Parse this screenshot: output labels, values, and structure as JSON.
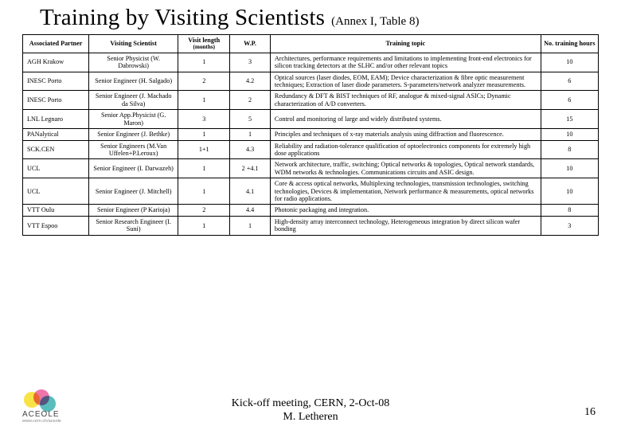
{
  "title": "Training by Visiting Scientists",
  "annex": "(Annex I, Table 8)",
  "headers": {
    "c0": "Associated Partner",
    "c1": "Visiting Scientist",
    "c2_main": "Visit length",
    "c2_sub": "(months)",
    "c3": "W.P.",
    "c4": "Training topic",
    "c5": "No. training hours"
  },
  "rows": [
    {
      "c0": "AGH Krakow",
      "c1": "Senior Physicist (W. Dabrowski)",
      "c2": "1",
      "c3": "3",
      "c4": "Architectures, performance requirements and limitations to implementing front-end electronics for silicon tracking detectors at the SLHC and/or other relevant topics",
      "c5": "10"
    },
    {
      "c0": "INESC Porto",
      "c1": "Senior Engineer (H. Salgado)",
      "c2": "2",
      "c3": "4.2",
      "c4": "Optical sources (laser diodes, EOM, EAM); Device characterization & fibre optic measurement techniques; Extraction of laser diode parameters. S-parameters/network analyzer measurements.",
      "c5": "6"
    },
    {
      "c0": "INESC Porto",
      "c1": "Senior Engineer (J. Machado da Silva)",
      "c2": "1",
      "c3": "2",
      "c4": "Redundancy & DFT & BIST techniques of RF, analogue & mixed-signal ASICs; Dynamic characterization of A/D converters.",
      "c5": "6"
    },
    {
      "c0": "LNL Legnaro",
      "c1": "Senior App.Physicist (G. Maron)",
      "c2": "3",
      "c3": "5",
      "c4": "Control and monitoring of large and widely distributed systems.",
      "c5": "15"
    },
    {
      "c0": "PANalytical",
      "c1": "Senior Engineer (J. Bethke)",
      "c2": "1",
      "c3": "1",
      "c4": "Principles and techniques of x-ray materials analysis using diffraction and fluorescence.",
      "c5": "10"
    },
    {
      "c0": "SCK.CEN",
      "c1": "Senior Engineers (M.Van Uffelen+P.Leroux)",
      "c2": "1+1",
      "c3": "4.3",
      "c4": "Reliability and radiation-tolerance qualification of optoelectronics components for extremely high dose applications",
      "c5": "8"
    },
    {
      "c0": "UCL",
      "c1": "Senior Engineer (I. Darwazeh)",
      "c2": "1",
      "c3": "2 +4.1",
      "c4": "Network architecture, traffic, switching; Optical networks & topologies, Optical network standards, WDM networks & technologies. Communications circuits and ASIC design.",
      "c5": "10"
    },
    {
      "c0": "UCL",
      "c1": "Senior Engineer (J. Mitchell)",
      "c2": "1",
      "c3": "4.1",
      "c4": "Core & access optical networks, Multiplexing technologies, transmission technologies, switching technologies, Devices & implementation, Network performance & measurements, optical networks for radio applications.",
      "c5": "10"
    },
    {
      "c0": "VTT Oulu",
      "c1": "Senior Engineer (P Karioja)",
      "c2": "2",
      "c3": "4.4",
      "c4": "Photonic packaging and integration.",
      "c5": "8"
    },
    {
      "c0": "VTT Espoo",
      "c1": "Senior Research Engineer (I. Suni)",
      "c2": "1",
      "c3": "1",
      "c4": "High-density array interconnect technology, Heterogeneous integration by direct silicon wafer bonding",
      "c5": "3"
    }
  ],
  "logo": {
    "name": "ACEOLE",
    "url": "www.cern.ch/aceole"
  },
  "footer": {
    "line1": "Kick-off meeting, CERN, 2-Oct-08",
    "line2": "M. Letheren",
    "page": "16"
  },
  "colors": {
    "text": "#000000",
    "border": "#000000",
    "bg": "#ffffff",
    "logo_yellow": "#f6d800",
    "logo_pink": "#e83e8c",
    "logo_teal": "#1aa3a3"
  }
}
